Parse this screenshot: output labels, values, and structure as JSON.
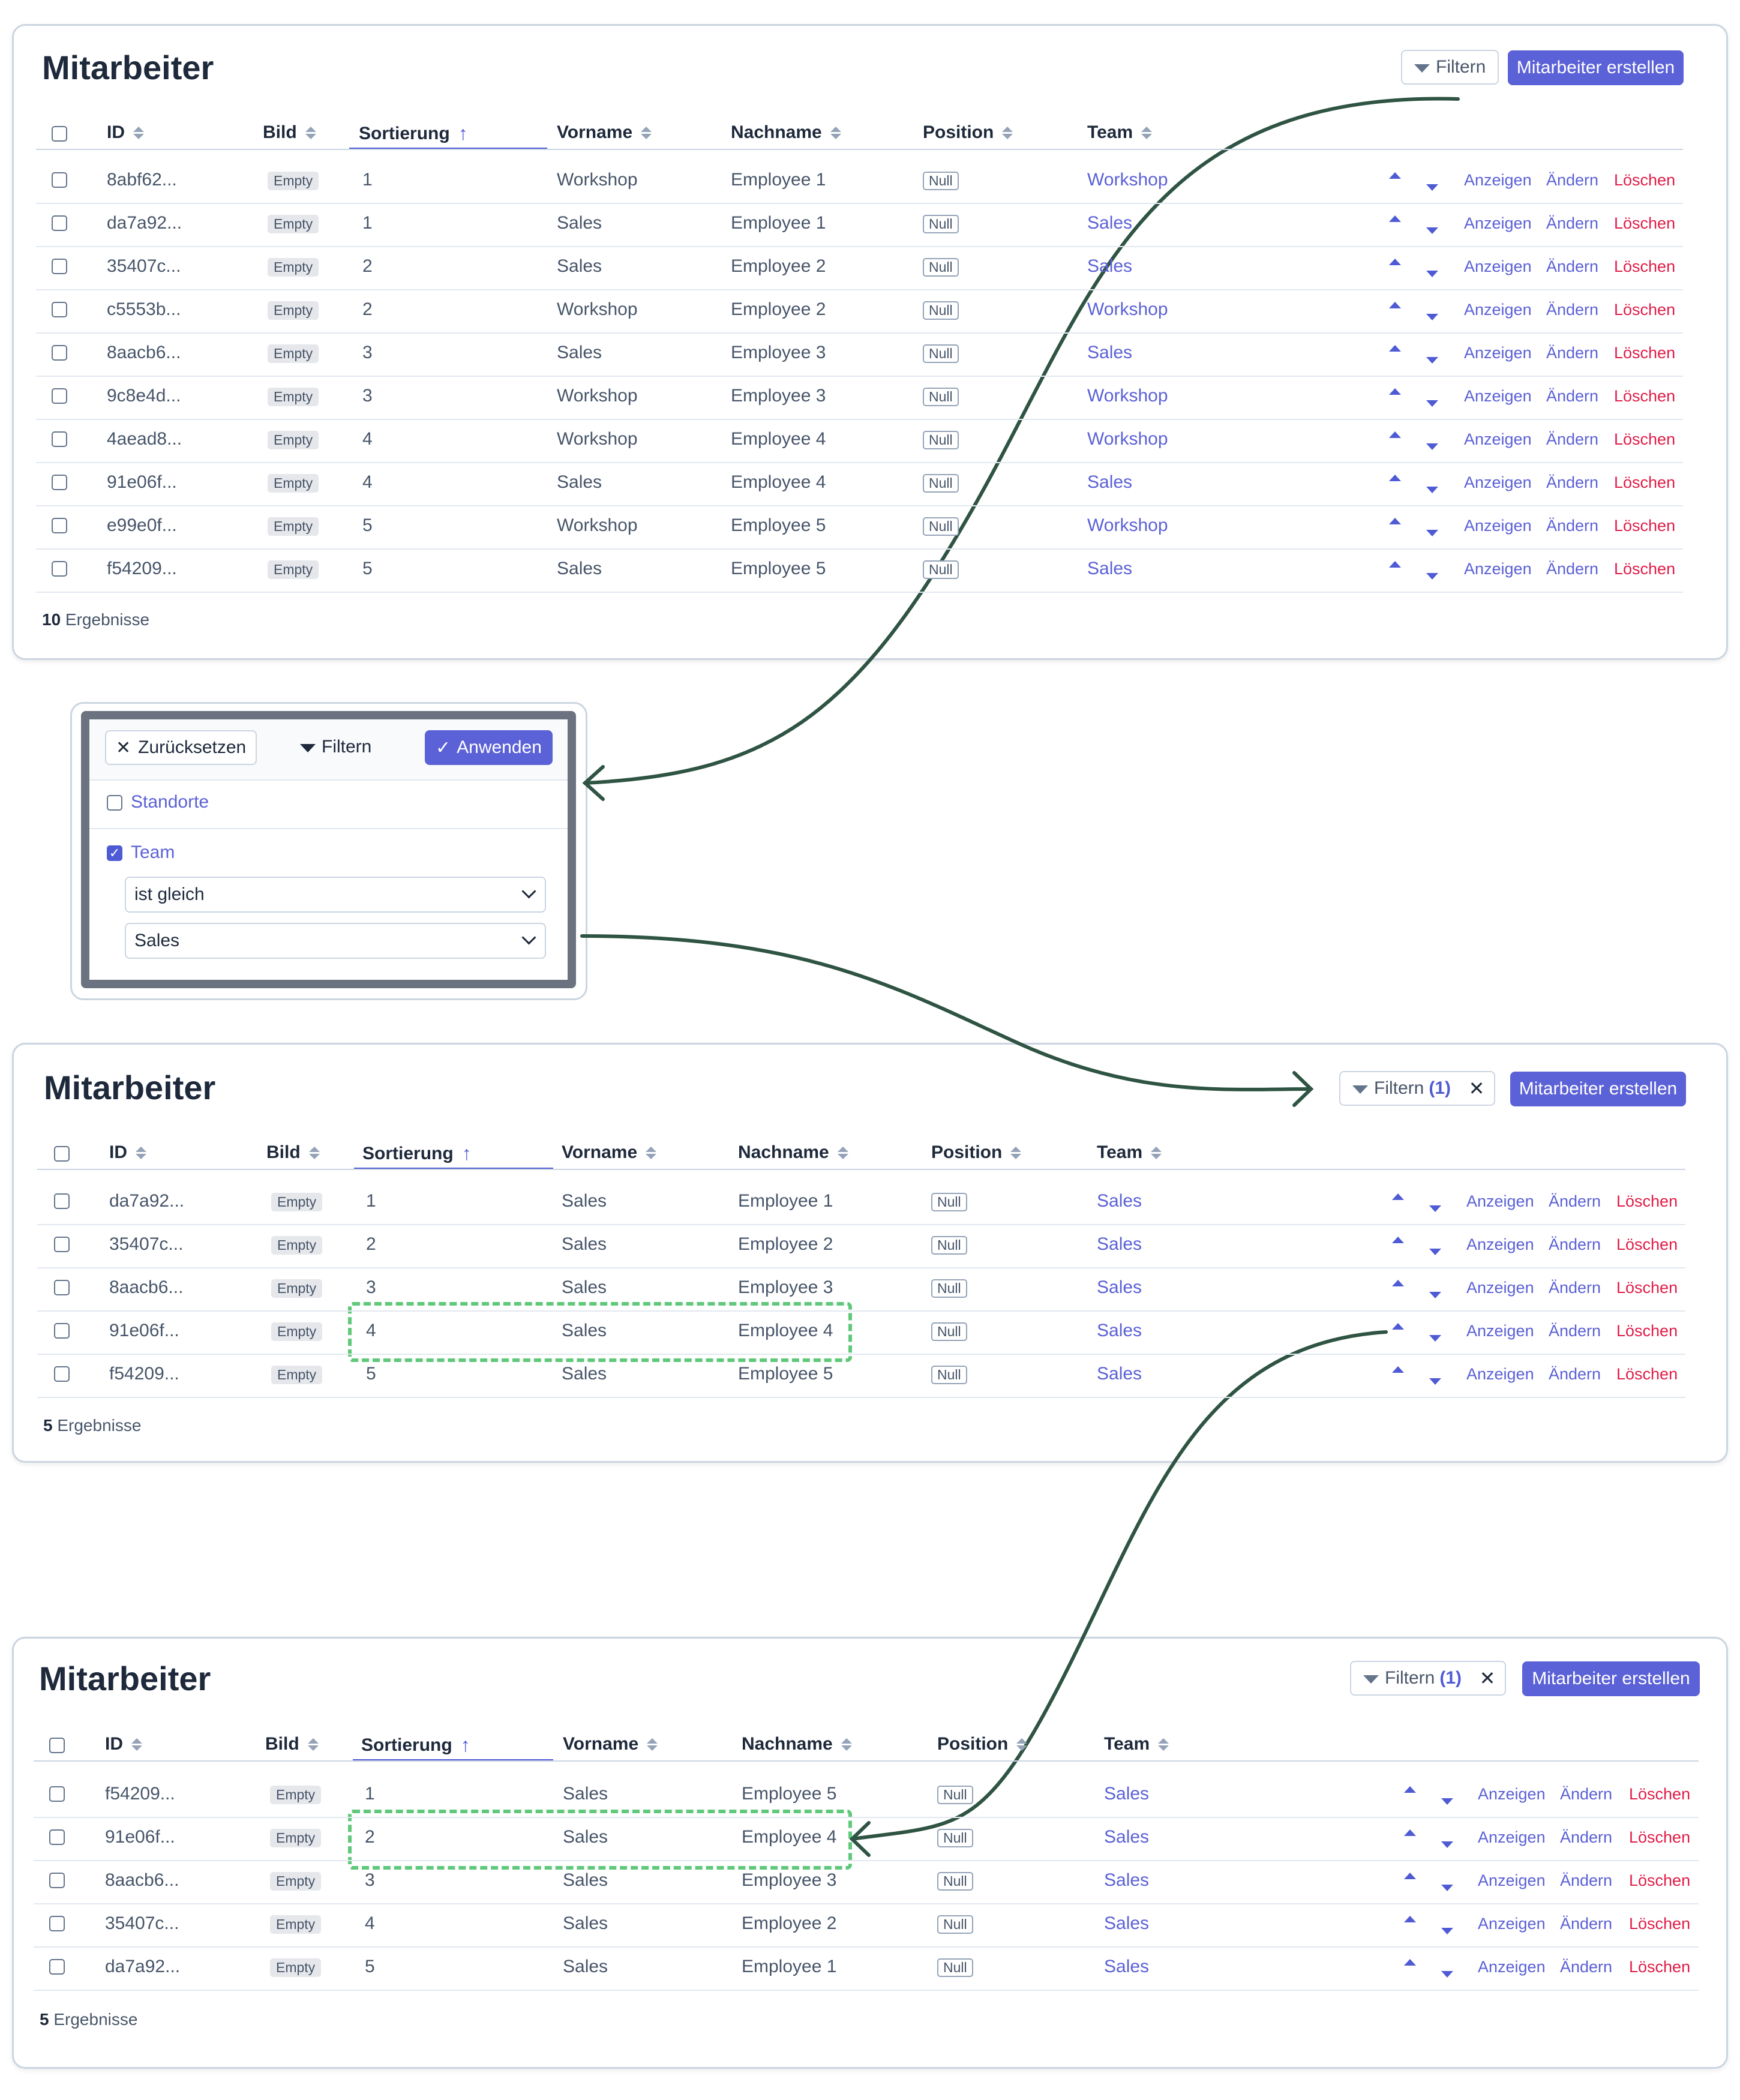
{
  "colors": {
    "accent": "#5b61d6",
    "delete": "#e11d48",
    "highlight": "#5fc87a",
    "arrow": "#2f5443"
  },
  "icons": {
    "filter": "funnel-icon",
    "close": "close-icon",
    "check": "check-icon",
    "sort": "sort-icon",
    "sort_asc": "arrow-up-icon",
    "move_up": "caret-up-icon",
    "move_down": "caret-down-icon",
    "chevron": "chevron-down-icon"
  },
  "columns": [
    "ID",
    "Bild",
    "Sortierung",
    "Vorname",
    "Nachname",
    "Position",
    "Team"
  ],
  "actions": {
    "show": "Anzeigen",
    "edit": "Ändern",
    "delete": "Löschen"
  },
  "panel1": {
    "title": "Mitarbeiter",
    "filter_label": "Filtern",
    "create_label": "Mitarbeiter erstellen",
    "results_count": "10",
    "results_label": "Ergebnisse",
    "rows": [
      {
        "id": "8abf62...",
        "img": "Empty",
        "sort": "1",
        "first": "Workshop",
        "last": "Employee 1",
        "pos": "Null",
        "team": "Workshop"
      },
      {
        "id": "da7a92...",
        "img": "Empty",
        "sort": "1",
        "first": "Sales",
        "last": "Employee 1",
        "pos": "Null",
        "team": "Sales"
      },
      {
        "id": "35407c...",
        "img": "Empty",
        "sort": "2",
        "first": "Sales",
        "last": "Employee 2",
        "pos": "Null",
        "team": "Sales"
      },
      {
        "id": "c5553b...",
        "img": "Empty",
        "sort": "2",
        "first": "Workshop",
        "last": "Employee 2",
        "pos": "Null",
        "team": "Workshop"
      },
      {
        "id": "8aacb6...",
        "img": "Empty",
        "sort": "3",
        "first": "Sales",
        "last": "Employee 3",
        "pos": "Null",
        "team": "Sales"
      },
      {
        "id": "9c8e4d...",
        "img": "Empty",
        "sort": "3",
        "first": "Workshop",
        "last": "Employee 3",
        "pos": "Null",
        "team": "Workshop"
      },
      {
        "id": "4aead8...",
        "img": "Empty",
        "sort": "4",
        "first": "Workshop",
        "last": "Employee 4",
        "pos": "Null",
        "team": "Workshop"
      },
      {
        "id": "91e06f...",
        "img": "Empty",
        "sort": "4",
        "first": "Sales",
        "last": "Employee 4",
        "pos": "Null",
        "team": "Sales"
      },
      {
        "id": "e99e0f...",
        "img": "Empty",
        "sort": "5",
        "first": "Workshop",
        "last": "Employee 5",
        "pos": "Null",
        "team": "Workshop"
      },
      {
        "id": "f54209...",
        "img": "Empty",
        "sort": "5",
        "first": "Sales",
        "last": "Employee 5",
        "pos": "Null",
        "team": "Sales"
      }
    ]
  },
  "filter_popup": {
    "reset_label": "Zurücksetzen",
    "title": "Filtern",
    "apply_label": "Anwenden",
    "option1": "Standorte",
    "option2": "Team",
    "operator": "ist gleich",
    "value": "Sales"
  },
  "panel2": {
    "title": "Mitarbeiter",
    "filter_label": "Filtern",
    "filter_count": "(1)",
    "create_label": "Mitarbeiter erstellen",
    "results_count": "5",
    "results_label": "Ergebnisse",
    "rows": [
      {
        "id": "da7a92...",
        "img": "Empty",
        "sort": "1",
        "first": "Sales",
        "last": "Employee 1",
        "pos": "Null",
        "team": "Sales"
      },
      {
        "id": "35407c...",
        "img": "Empty",
        "sort": "2",
        "first": "Sales",
        "last": "Employee 2",
        "pos": "Null",
        "team": "Sales"
      },
      {
        "id": "8aacb6...",
        "img": "Empty",
        "sort": "3",
        "first": "Sales",
        "last": "Employee 3",
        "pos": "Null",
        "team": "Sales"
      },
      {
        "id": "91e06f...",
        "img": "Empty",
        "sort": "4",
        "first": "Sales",
        "last": "Employee 4",
        "pos": "Null",
        "team": "Sales"
      },
      {
        "id": "f54209...",
        "img": "Empty",
        "sort": "5",
        "first": "Sales",
        "last": "Employee 5",
        "pos": "Null",
        "team": "Sales"
      }
    ]
  },
  "panel3": {
    "title": "Mitarbeiter",
    "filter_label": "Filtern",
    "filter_count": "(1)",
    "create_label": "Mitarbeiter erstellen",
    "results_count": "5",
    "results_label": "Ergebnisse",
    "rows": [
      {
        "id": "f54209...",
        "img": "Empty",
        "sort": "1",
        "first": "Sales",
        "last": "Employee 5",
        "pos": "Null",
        "team": "Sales"
      },
      {
        "id": "91e06f...",
        "img": "Empty",
        "sort": "2",
        "first": "Sales",
        "last": "Employee 4",
        "pos": "Null",
        "team": "Sales"
      },
      {
        "id": "8aacb6...",
        "img": "Empty",
        "sort": "3",
        "first": "Sales",
        "last": "Employee 3",
        "pos": "Null",
        "team": "Sales"
      },
      {
        "id": "35407c...",
        "img": "Empty",
        "sort": "4",
        "first": "Sales",
        "last": "Employee 2",
        "pos": "Null",
        "team": "Sales"
      },
      {
        "id": "da7a92...",
        "img": "Empty",
        "sort": "5",
        "first": "Sales",
        "last": "Employee 1",
        "pos": "Null",
        "team": "Sales"
      }
    ]
  }
}
